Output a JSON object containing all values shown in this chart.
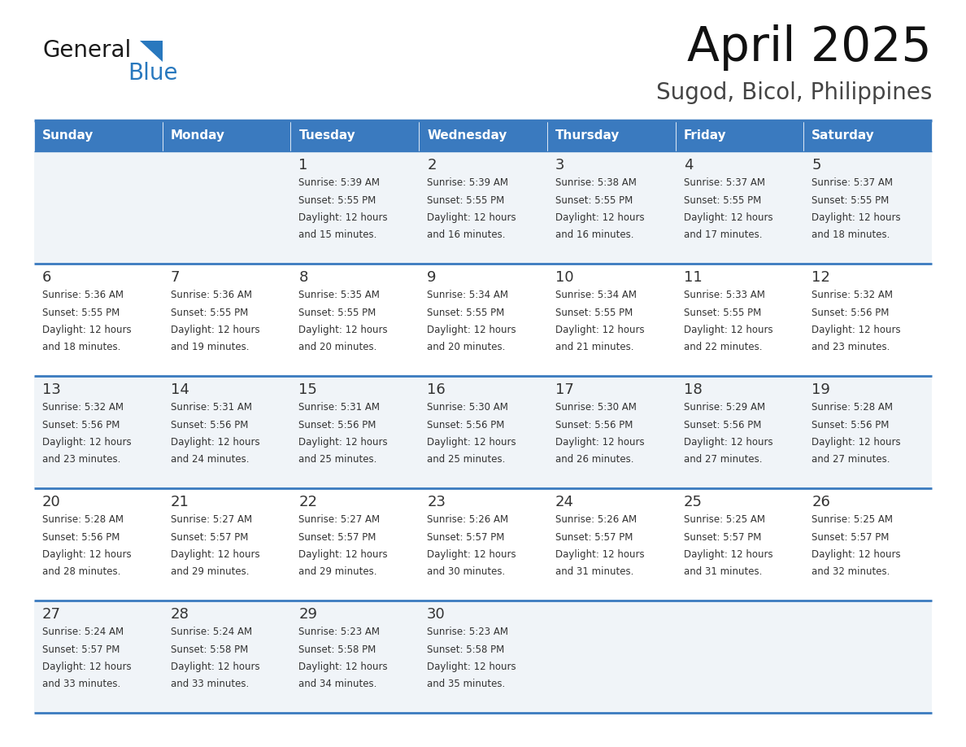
{
  "title": "April 2025",
  "subtitle": "Sugod, Bicol, Philippines",
  "header_color": "#3a7abf",
  "header_text_color": "#ffffff",
  "day_names": [
    "Sunday",
    "Monday",
    "Tuesday",
    "Wednesday",
    "Thursday",
    "Friday",
    "Saturday"
  ],
  "row_color_odd": "#f0f4f8",
  "row_color_even": "#ffffff",
  "border_color": "#3a7abf",
  "text_color": "#333333",
  "logo_general_color": "#1a1a1a",
  "logo_blue_color": "#2878be",
  "calendar_data": [
    [
      {
        "day": null,
        "sunrise": null,
        "sunset": null,
        "daylight_hours": null,
        "daylight_minutes": null
      },
      {
        "day": null,
        "sunrise": null,
        "sunset": null,
        "daylight_hours": null,
        "daylight_minutes": null
      },
      {
        "day": 1,
        "sunrise": "5:39 AM",
        "sunset": "5:55 PM",
        "daylight_hours": 12,
        "daylight_minutes": 15
      },
      {
        "day": 2,
        "sunrise": "5:39 AM",
        "sunset": "5:55 PM",
        "daylight_hours": 12,
        "daylight_minutes": 16
      },
      {
        "day": 3,
        "sunrise": "5:38 AM",
        "sunset": "5:55 PM",
        "daylight_hours": 12,
        "daylight_minutes": 16
      },
      {
        "day": 4,
        "sunrise": "5:37 AM",
        "sunset": "5:55 PM",
        "daylight_hours": 12,
        "daylight_minutes": 17
      },
      {
        "day": 5,
        "sunrise": "5:37 AM",
        "sunset": "5:55 PM",
        "daylight_hours": 12,
        "daylight_minutes": 18
      }
    ],
    [
      {
        "day": 6,
        "sunrise": "5:36 AM",
        "sunset": "5:55 PM",
        "daylight_hours": 12,
        "daylight_minutes": 18
      },
      {
        "day": 7,
        "sunrise": "5:36 AM",
        "sunset": "5:55 PM",
        "daylight_hours": 12,
        "daylight_minutes": 19
      },
      {
        "day": 8,
        "sunrise": "5:35 AM",
        "sunset": "5:55 PM",
        "daylight_hours": 12,
        "daylight_minutes": 20
      },
      {
        "day": 9,
        "sunrise": "5:34 AM",
        "sunset": "5:55 PM",
        "daylight_hours": 12,
        "daylight_minutes": 20
      },
      {
        "day": 10,
        "sunrise": "5:34 AM",
        "sunset": "5:55 PM",
        "daylight_hours": 12,
        "daylight_minutes": 21
      },
      {
        "day": 11,
        "sunrise": "5:33 AM",
        "sunset": "5:55 PM",
        "daylight_hours": 12,
        "daylight_minutes": 22
      },
      {
        "day": 12,
        "sunrise": "5:32 AM",
        "sunset": "5:56 PM",
        "daylight_hours": 12,
        "daylight_minutes": 23
      }
    ],
    [
      {
        "day": 13,
        "sunrise": "5:32 AM",
        "sunset": "5:56 PM",
        "daylight_hours": 12,
        "daylight_minutes": 23
      },
      {
        "day": 14,
        "sunrise": "5:31 AM",
        "sunset": "5:56 PM",
        "daylight_hours": 12,
        "daylight_minutes": 24
      },
      {
        "day": 15,
        "sunrise": "5:31 AM",
        "sunset": "5:56 PM",
        "daylight_hours": 12,
        "daylight_minutes": 25
      },
      {
        "day": 16,
        "sunrise": "5:30 AM",
        "sunset": "5:56 PM",
        "daylight_hours": 12,
        "daylight_minutes": 25
      },
      {
        "day": 17,
        "sunrise": "5:30 AM",
        "sunset": "5:56 PM",
        "daylight_hours": 12,
        "daylight_minutes": 26
      },
      {
        "day": 18,
        "sunrise": "5:29 AM",
        "sunset": "5:56 PM",
        "daylight_hours": 12,
        "daylight_minutes": 27
      },
      {
        "day": 19,
        "sunrise": "5:28 AM",
        "sunset": "5:56 PM",
        "daylight_hours": 12,
        "daylight_minutes": 27
      }
    ],
    [
      {
        "day": 20,
        "sunrise": "5:28 AM",
        "sunset": "5:56 PM",
        "daylight_hours": 12,
        "daylight_minutes": 28
      },
      {
        "day": 21,
        "sunrise": "5:27 AM",
        "sunset": "5:57 PM",
        "daylight_hours": 12,
        "daylight_minutes": 29
      },
      {
        "day": 22,
        "sunrise": "5:27 AM",
        "sunset": "5:57 PM",
        "daylight_hours": 12,
        "daylight_minutes": 29
      },
      {
        "day": 23,
        "sunrise": "5:26 AM",
        "sunset": "5:57 PM",
        "daylight_hours": 12,
        "daylight_minutes": 30
      },
      {
        "day": 24,
        "sunrise": "5:26 AM",
        "sunset": "5:57 PM",
        "daylight_hours": 12,
        "daylight_minutes": 31
      },
      {
        "day": 25,
        "sunrise": "5:25 AM",
        "sunset": "5:57 PM",
        "daylight_hours": 12,
        "daylight_minutes": 31
      },
      {
        "day": 26,
        "sunrise": "5:25 AM",
        "sunset": "5:57 PM",
        "daylight_hours": 12,
        "daylight_minutes": 32
      }
    ],
    [
      {
        "day": 27,
        "sunrise": "5:24 AM",
        "sunset": "5:57 PM",
        "daylight_hours": 12,
        "daylight_minutes": 33
      },
      {
        "day": 28,
        "sunrise": "5:24 AM",
        "sunset": "5:58 PM",
        "daylight_hours": 12,
        "daylight_minutes": 33
      },
      {
        "day": 29,
        "sunrise": "5:23 AM",
        "sunset": "5:58 PM",
        "daylight_hours": 12,
        "daylight_minutes": 34
      },
      {
        "day": 30,
        "sunrise": "5:23 AM",
        "sunset": "5:58 PM",
        "daylight_hours": 12,
        "daylight_minutes": 35
      },
      {
        "day": null,
        "sunrise": null,
        "sunset": null,
        "daylight_hours": null,
        "daylight_minutes": null
      },
      {
        "day": null,
        "sunrise": null,
        "sunset": null,
        "daylight_hours": null,
        "daylight_minutes": null
      },
      {
        "day": null,
        "sunrise": null,
        "sunset": null,
        "daylight_hours": null,
        "daylight_minutes": null
      }
    ]
  ],
  "fig_width": 11.88,
  "fig_height": 9.18,
  "dpi": 100
}
